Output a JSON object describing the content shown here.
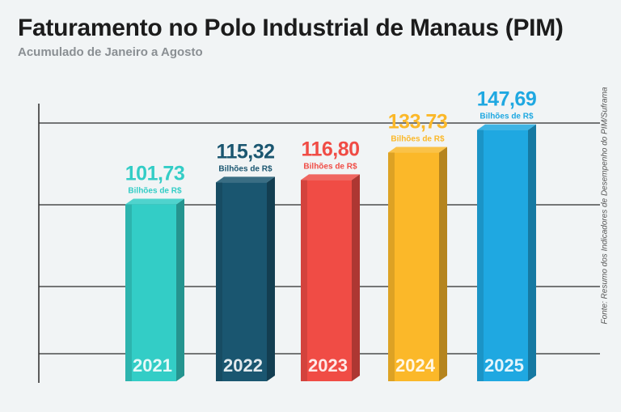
{
  "title": "Faturamento no Polo Industrial de Manaus (PIM)",
  "subtitle": "Acumulado de Janeiro a Agosto",
  "source": "Fonte: Resumo dos Indicadores de Desempenho do PIM/Suframa",
  "chart_data": {
    "type": "bar",
    "categories": [
      "2021",
      "2022",
      "2023",
      "2024",
      "2025"
    ],
    "values": [
      101.73,
      115.32,
      116.8,
      133.73,
      147.69
    ],
    "value_labels": [
      "101,73",
      "115,32",
      "116,80",
      "133,73",
      "147,69"
    ],
    "unit": "Bilhões de R$",
    "colors": [
      "#33cdc6",
      "#1a5670",
      "#f04c45",
      "#fbb829",
      "#1fa8e1"
    ],
    "ylim": [
      0,
      160
    ],
    "grid": true,
    "title": "Faturamento no Polo Industrial de Manaus (PIM)",
    "subtitle": "Acumulado de Janeiro a Agosto",
    "xlabel": "",
    "ylabel": ""
  }
}
